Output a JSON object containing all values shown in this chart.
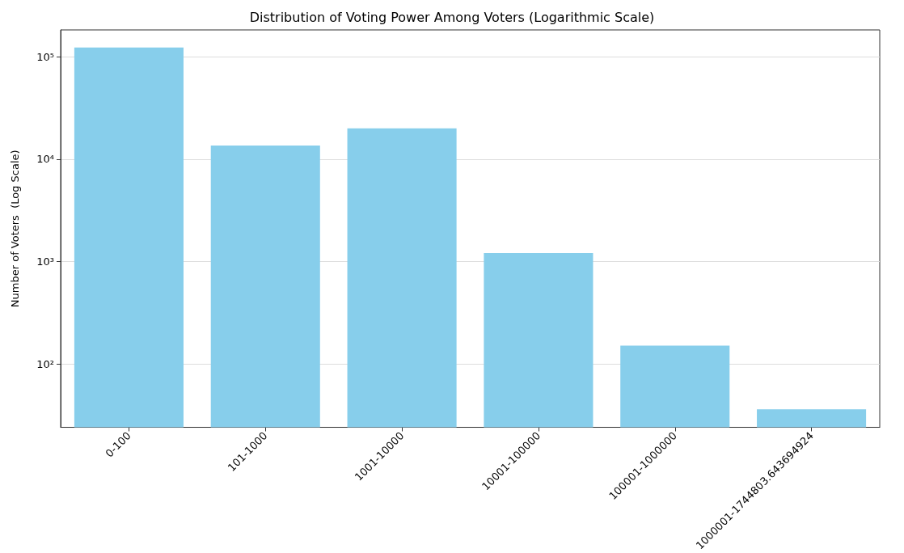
{
  "chart_data": {
    "type": "bar",
    "title": "Distribution of Voting Power Among Voters (Logarithmic Scale)",
    "ylabel": "Number of Voters  (Log Scale)",
    "categories": [
      "0-100",
      "101-1000",
      "1001-10000",
      "10001-100000",
      "100001-1000000",
      "1000001-1744803.643694924"
    ],
    "values": [
      123000,
      13600,
      20000,
      1210,
      151,
      36
    ],
    "color": "#87ceeb",
    "log": true,
    "ylim": [
      24,
      183000
    ],
    "yticks": [
      {
        "value": 100,
        "label": "10²"
      },
      {
        "value": 1000,
        "label": "10³"
      },
      {
        "value": 10000,
        "label": "10⁴"
      },
      {
        "value": 100000,
        "label": "10⁵"
      }
    ],
    "grid": "y"
  }
}
